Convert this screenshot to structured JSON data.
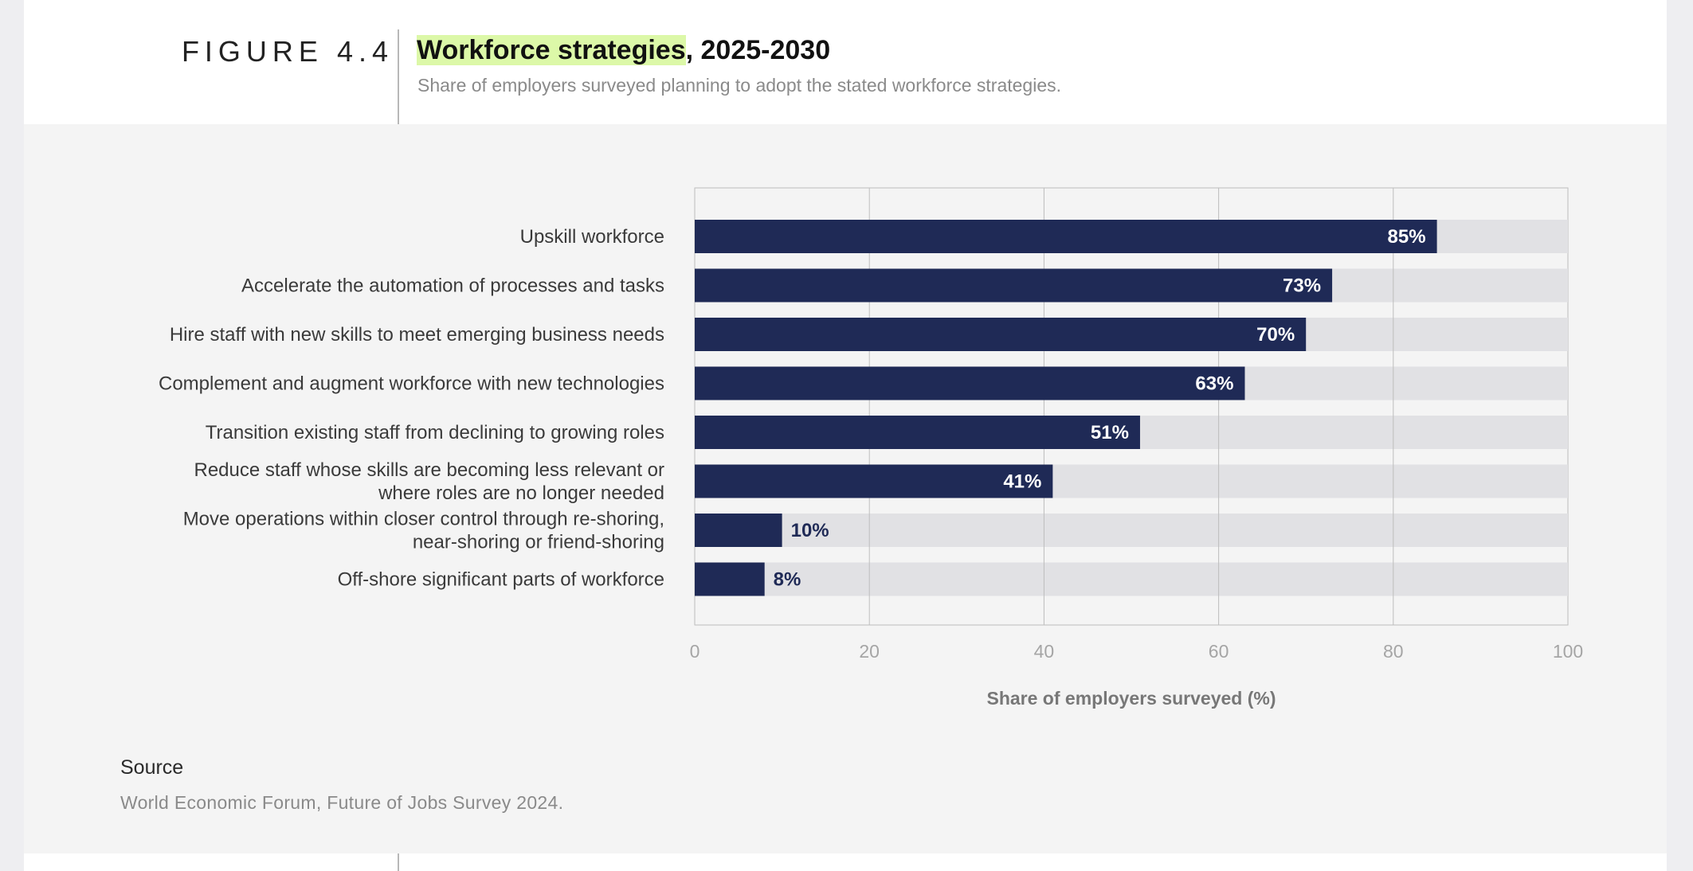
{
  "figure": {
    "label": "FIGURE 4.4",
    "title_highlight": "Workforce strategies",
    "title_rest": ", 2025-2030",
    "subtitle": "Share of employers surveyed planning to adopt the stated workforce strategies."
  },
  "chart_data": {
    "type": "bar",
    "orientation": "horizontal",
    "categories": [
      [
        "Upskill workforce"
      ],
      [
        "Accelerate the automation of processes and tasks"
      ],
      [
        "Hire staff with new skills to meet emerging business needs"
      ],
      [
        "Complement and augment workforce with new technologies"
      ],
      [
        "Transition existing staff from declining to growing roles"
      ],
      [
        "Reduce staff whose skills are becoming less relevant or",
        "where roles are no longer needed"
      ],
      [
        "Move operations within closer control through re-shoring,",
        "near-shoring or friend-shoring"
      ],
      [
        "Off-shore significant parts of workforce"
      ]
    ],
    "values": [
      85,
      73,
      70,
      63,
      51,
      41,
      10,
      8
    ],
    "data_labels": [
      "85%",
      "73%",
      "70%",
      "63%",
      "51%",
      "41%",
      "10%",
      "8%"
    ],
    "xlabel": "Share of employers surveyed (%)",
    "xlim": [
      0,
      100
    ],
    "xticks": [
      "0",
      "20",
      "40",
      "60",
      "80",
      "100"
    ],
    "grid": true,
    "colors": {
      "bar": "#1f2a56",
      "track": "#e1e1e4",
      "grid": "#bdbdbd",
      "label_inside": "#ffffff",
      "label_outside": "#1f2a56"
    }
  },
  "source": {
    "heading": "Source",
    "text": "World Economic Forum, Future of Jobs Survey 2024."
  }
}
